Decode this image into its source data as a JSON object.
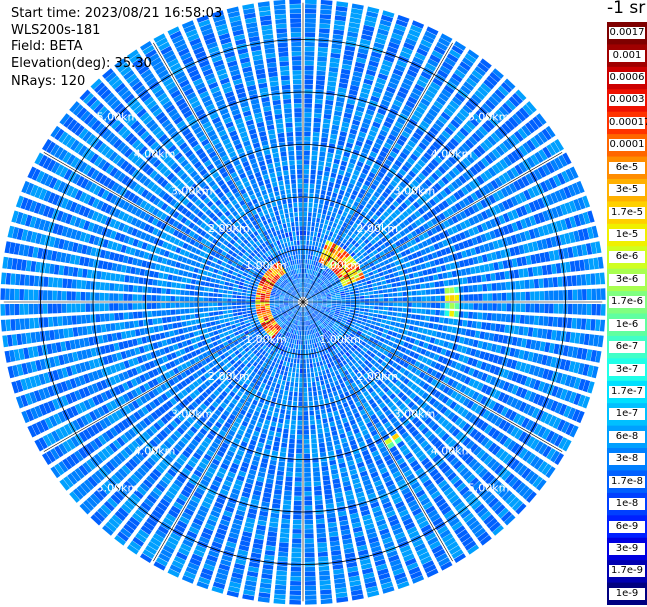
{
  "header": {
    "start_time": "Start time: 2023/08/21 16:58:03",
    "instrument": "WLS200s-181",
    "field": "Field: BETA",
    "elevation": "Elevation(deg): 35.30",
    "nrays": "NRays: 120"
  },
  "colorbar": {
    "unit": "-1 sr",
    "labels": [
      "0.0017",
      "0.001",
      "0.0006",
      "0.0003",
      "0.00017",
      "0.0001",
      "6e-5",
      "3e-5",
      "1.7e-5",
      "1e-5",
      "6e-6",
      "3e-6",
      "1.7e-6",
      "1e-6",
      "6e-7",
      "3e-7",
      "1.7e-7",
      "1e-7",
      "6e-8",
      "3e-8",
      "1.7e-8",
      "1e-8",
      "6e-9",
      "3e-9",
      "1.7e-9",
      "1e-9"
    ],
    "colors": [
      "#7f0000",
      "#a00000",
      "#cc0000",
      "#ee1100",
      "#ff3300",
      "#ff6600",
      "#ff8c00",
      "#ffb000",
      "#ffd000",
      "#f0f000",
      "#d0ff20",
      "#a8ff50",
      "#80ff80",
      "#60ffa0",
      "#40ffc8",
      "#20ffe8",
      "#00e0ff",
      "#00c0ff",
      "#00a0ff",
      "#0080ff",
      "#0060ff",
      "#0040ff",
      "#0020ff",
      "#0000e0",
      "#0000b0",
      "#000080"
    ]
  },
  "chart_data": {
    "type": "heatmap",
    "projection": "polar (PPI)",
    "field": "BETA",
    "elevation_deg": 35.3,
    "n_rays": 120,
    "range_rings_km": [
      1,
      2,
      3,
      4,
      5
    ],
    "ring_labels": [
      "1.00km",
      "2.00km",
      "3.00km",
      "4.00km",
      "5.00km"
    ],
    "max_range_km": 5.7,
    "colormap_levels": [
      "1e-9",
      "1.7e-9",
      "3e-9",
      "6e-9",
      "1e-8",
      "1.7e-8",
      "3e-8",
      "6e-8",
      "1e-7",
      "1.7e-7",
      "3e-7",
      "6e-7",
      "1e-6",
      "1.7e-6",
      "3e-6",
      "6e-6",
      "1e-5",
      "1.7e-5",
      "3e-5",
      "6e-5",
      "0.0001",
      "0.00017",
      "0.0003",
      "0.0006",
      "0.001",
      "0.0017"
    ],
    "background_level": "3e-8",
    "features": [
      {
        "region": "arc west/northwest of center",
        "range_km": [
          0.6,
          0.9
        ],
        "azimuth_deg": [
          220,
          330
        ],
        "peak_value": "0.0006"
      },
      {
        "region": "arc northeast of center",
        "range_km": [
          0.8,
          1.2
        ],
        "azimuth_deg": [
          20,
          70
        ],
        "peak_value": "0.0003"
      },
      {
        "region": "east patch",
        "range_km": [
          2.7,
          2.9
        ],
        "azimuth_deg": [
          85,
          95
        ],
        "peak_value": "3e-5"
      },
      {
        "region": "southeast patch",
        "range_km": [
          3.0,
          3.2
        ],
        "azimuth_deg": [
          145,
          150
        ],
        "peak_value": "3e-5"
      }
    ],
    "grid": true
  }
}
